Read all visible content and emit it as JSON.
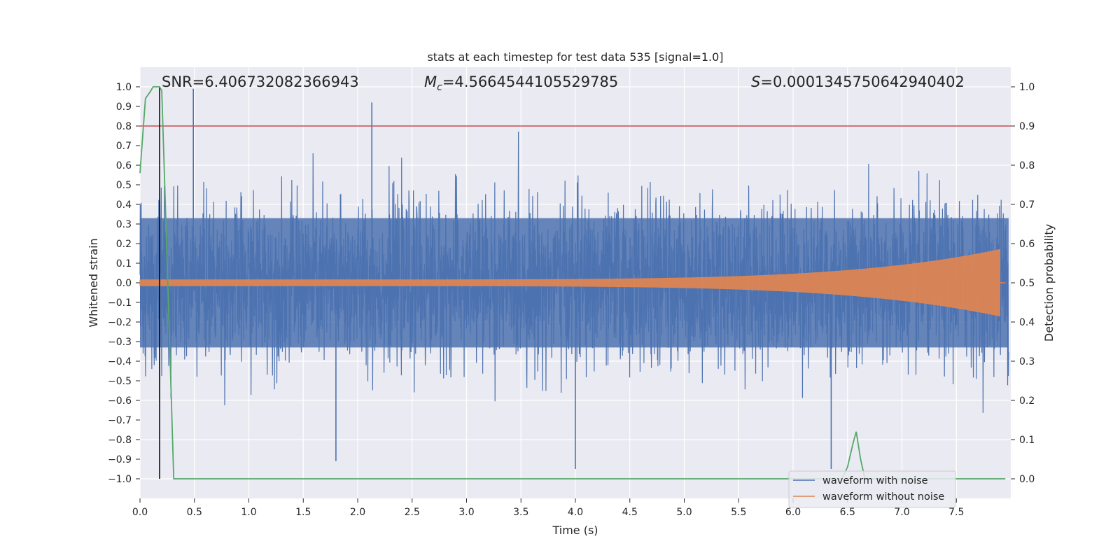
{
  "chart_data": {
    "type": "line",
    "title": "stats at each timestep for test data 535 [signal=1.0]",
    "xlabel": "Time (s)",
    "ylabel": "Whitened strain",
    "y2label": "Detection probability",
    "xlim": [
      0.0,
      8.0
    ],
    "ylim": [
      -1.1,
      1.1
    ],
    "y2lim": [
      -0.05,
      1.05
    ],
    "xticks": [
      0.0,
      0.5,
      1.0,
      1.5,
      2.0,
      2.5,
      3.0,
      3.5,
      4.0,
      4.5,
      5.0,
      5.5,
      6.0,
      6.5,
      7.0,
      7.5
    ],
    "xtick_labels": [
      "0.0",
      "0.5",
      "1.0",
      "1.5",
      "2.0",
      "2.5",
      "3.0",
      "3.5",
      "4.0",
      "4.5",
      "5.0",
      "5.5",
      "6.0",
      "6.5",
      "7.0",
      "7.5"
    ],
    "yticks": [
      1.0,
      0.9,
      0.8,
      0.7,
      0.6,
      0.5,
      0.4,
      0.3,
      0.2,
      0.1,
      0.0,
      -0.1,
      -0.2,
      -0.3,
      -0.4,
      -0.5,
      -0.6,
      -0.7,
      -0.8,
      -0.9,
      -1.0
    ],
    "ytick_labels": [
      "1.0",
      "0.9",
      "0.8",
      "0.7",
      "0.6",
      "0.5",
      "0.4",
      "0.3",
      "0.2",
      "0.1",
      "0.0",
      "−0.1",
      "−0.2",
      "−0.3",
      "−0.4",
      "−0.5",
      "−0.6",
      "−0.7",
      "−0.8",
      "−0.9",
      "−1.0"
    ],
    "y2ticks": [
      1.0,
      0.9,
      0.8,
      0.7,
      0.6,
      0.5,
      0.4,
      0.3,
      0.2,
      0.1,
      0.0
    ],
    "y2tick_labels": [
      "1.0",
      "0.9",
      "0.8",
      "0.7",
      "0.6",
      "0.5",
      "0.4",
      "0.3",
      "0.2",
      "0.1",
      "0.0"
    ],
    "grid": true,
    "annotations": {
      "snr": "SNR=6.406732082366943",
      "mc_symbol": "M",
      "mc_sub": "c",
      "mc_value": "=4.5664544105529785",
      "s_symbol": "S",
      "s_value": "=0.0001345750642940402"
    },
    "series": [
      {
        "name": "waveform with noise",
        "color": "#4c72b0",
        "style": "noise",
        "envelope_approx": 0.33,
        "peak_spikes": [
          {
            "x": 0.49,
            "y": 0.99
          },
          {
            "x": 2.13,
            "y": 0.92
          },
          {
            "x": 1.8,
            "y": -0.91
          },
          {
            "x": 4.0,
            "y": -0.95
          },
          {
            "x": 6.35,
            "y": -0.95
          }
        ]
      },
      {
        "name": "waveform without noise",
        "color": "#dd8452",
        "style": "chirp",
        "start_amplitude": 0.015,
        "end_amplitude": 0.17,
        "merger_time": 7.9
      },
      {
        "name": "detection probability",
        "color": "#55a868",
        "axis": "right",
        "x": [
          0.0,
          0.05,
          0.1,
          0.12,
          0.18,
          0.2,
          0.25,
          0.31,
          0.5,
          6.45,
          6.5,
          6.55,
          6.58,
          6.62,
          6.66,
          7.95
        ],
        "y": [
          0.78,
          0.97,
          0.99,
          1.0,
          1.0,
          0.99,
          0.55,
          0.0,
          0.0,
          0.0,
          0.03,
          0.09,
          0.12,
          0.05,
          0.0,
          0.0
        ]
      }
    ],
    "hlines": [
      {
        "y": 0.8,
        "color": "#c44e52"
      }
    ],
    "vlines": [
      {
        "x": 0.18,
        "color": "#000000",
        "y_from": -1.0,
        "y_to": 1.0
      }
    ],
    "legend": {
      "position": "bottom-right",
      "entries": [
        "waveform with noise",
        "waveform without noise"
      ]
    }
  }
}
